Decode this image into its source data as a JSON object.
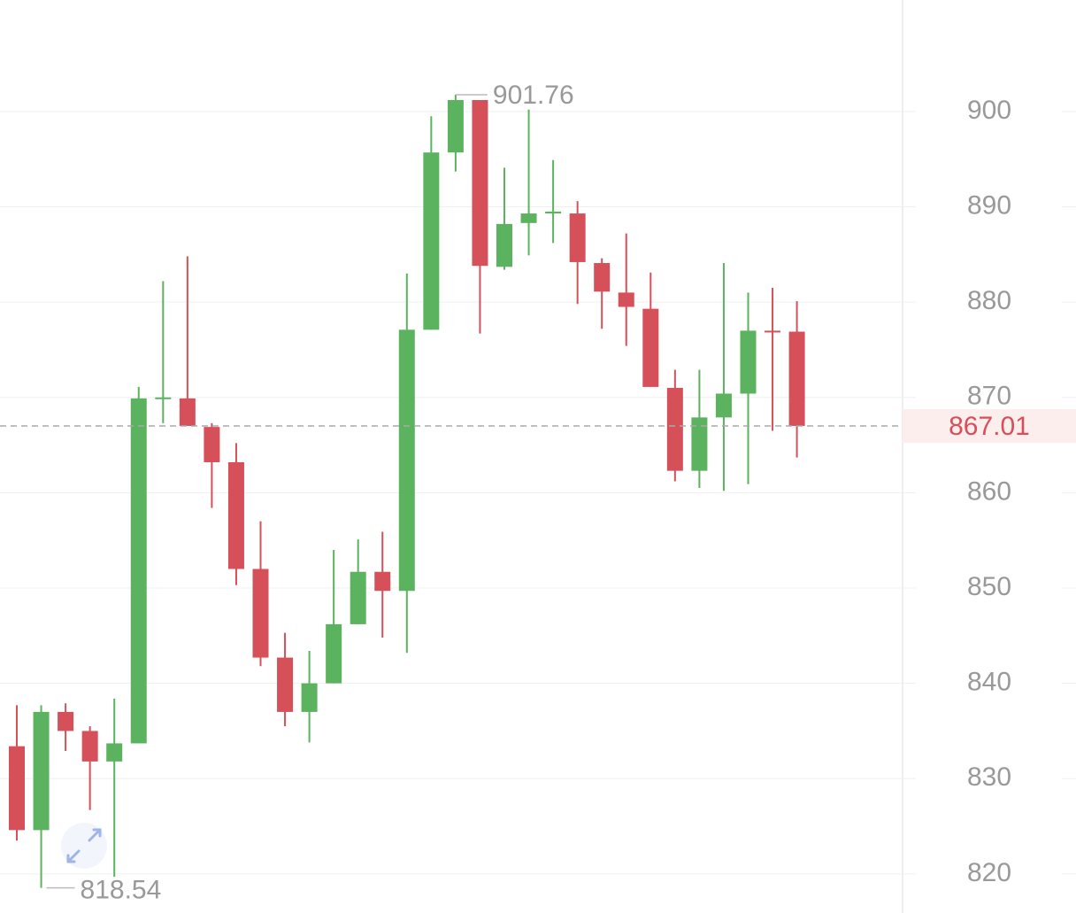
{
  "chart_data": {
    "type": "candlestick",
    "open": [
      833.4,
      824.6,
      837.0,
      835.0,
      831.8,
      833.7,
      869.9,
      869.9,
      866.9,
      863.2,
      852.0,
      842.7,
      837.0,
      840.0,
      846.2,
      851.7,
      849.7,
      877.1,
      895.7,
      901.2,
      883.7,
      888.3,
      889.3,
      889.3,
      884.1,
      881.0,
      879.3,
      871.0,
      862.3,
      867.9,
      870.4,
      877.0,
      876.9
    ],
    "high": [
      837.7,
      837.7,
      837.9,
      835.5,
      838.4,
      871.1,
      882.2,
      884.8,
      867.3,
      865.2,
      857.0,
      845.3,
      843.4,
      854.0,
      855.1,
      855.9,
      883.0,
      899.5,
      901.76,
      901.2,
      894.1,
      900.2,
      894.9,
      890.6,
      884.6,
      887.2,
      883.1,
      872.9,
      872.9,
      884.1,
      881.0,
      881.5,
      880.1
    ],
    "low": [
      823.5,
      818.54,
      832.9,
      826.7,
      819.7,
      833.7,
      867.3,
      867.0,
      858.4,
      850.3,
      841.8,
      835.5,
      833.8,
      840.0,
      846.2,
      844.8,
      843.2,
      877.1,
      893.7,
      876.7,
      883.4,
      884.9,
      886.2,
      879.8,
      877.2,
      875.4,
      871.1,
      861.2,
      860.5,
      860.2,
      860.9,
      866.5,
      863.7
    ],
    "close": [
      824.6,
      837.0,
      835.0,
      831.8,
      833.7,
      869.9,
      870.0,
      867.0,
      863.2,
      852.0,
      842.7,
      837.0,
      840.0,
      846.2,
      851.7,
      849.7,
      877.1,
      895.7,
      901.2,
      883.8,
      888.2,
      889.3,
      889.5,
      884.2,
      881.1,
      879.5,
      871.1,
      862.3,
      867.9,
      870.4,
      877.0,
      876.9,
      867.01
    ],
    "up_color": "#5cb35f",
    "down_color": "#d6505a",
    "ylim": [
      815.9,
      911.7
    ],
    "yticks": [
      820,
      830,
      840,
      850,
      860,
      870,
      880,
      890,
      900
    ],
    "grid": true,
    "max_marker": 901.76,
    "min_marker": 818.54,
    "last_price": 867.01
  }
}
